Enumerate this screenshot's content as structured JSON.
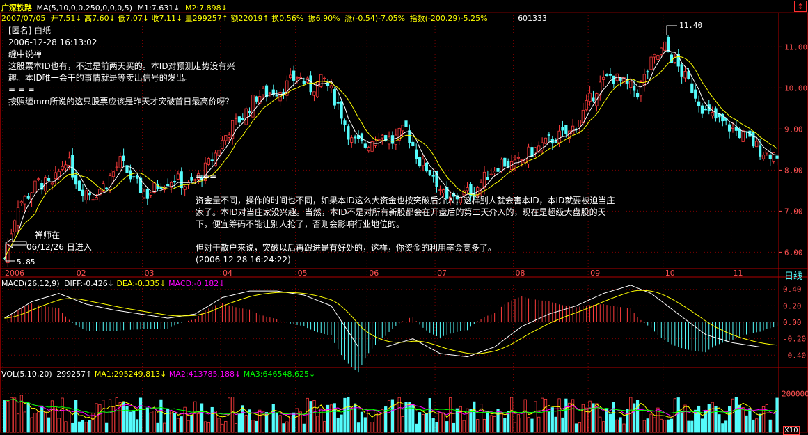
{
  "header": {
    "name": "广深铁路",
    "ma_formula": "MA(5,10,0,0,250,0,0,0,5)",
    "m1": "M1:7.631",
    "m2": "M2:7.898",
    "date": "2007/07/05",
    "open": "开7.51",
    "high": "高7.60",
    "low": "低7.07",
    "close": "收7.11",
    "volume": "量299257",
    "amount": "额22019",
    "turnover": "换0.56%",
    "amplitude": "振6.90%",
    "change": "涨(-0.54)-7.05%",
    "index": "指数(-200.29)-5.25%",
    "code": "601333"
  },
  "post": {
    "author": "[匿名] 白纸",
    "time": "2006-12-28 16:13:02",
    "lines": [
      "缠中说禅",
      "这股票本ID也有，不过是前两天买的。本ID对预测走势没有兴",
      "趣。本ID唯一会干的事情就是等卖出信号的发出。",
      "= = =",
      "按照缠mm所说的这只股票应该是昨天才突破首日最高价呀？"
    ]
  },
  "reply": {
    "marker": "===",
    "lines": [
      "资金量不同，操作的时间也不同，如果本ID这么大资金也按突破后介入，这样别人就会害本ID，本ID就要被迫当庄",
      "家了。本ID对当庄家没兴趣。当然，本ID不是对所有新股都会在开盘后的第二天介入的，现在是超级大盘股的天",
      "下，便宜筹码不能让别人抢了，否则会影响行业地位的。",
      "",
      "但对于散户来说，突破以后再跟进是有好处的，这样，你资金的利用率会高多了。",
      "(2006-12-28 16:24:22)"
    ]
  },
  "entry_note": {
    "line1": "禅师在",
    "line2": "06/12/26 日进入"
  },
  "restore_icon": "↕",
  "macd_header": {
    "label": "MACD(26,12,9)",
    "diff": "DIFF:-0.426",
    "dea": "DEA:-0.335",
    "macd": "MACD:-0.182"
  },
  "vol_header": {
    "label": "VOL(5,10,20)",
    "value": "299257",
    "ma1": "MA1:295249.813",
    "ma2": "MA2:413785.188",
    "ma3": "MA3:646548.625"
  },
  "period_label": "日线",
  "vol_unit": "X10",
  "colors": {
    "up": "#ff3c3c",
    "down": "#54fcfc",
    "ma5": "#ffffff",
    "ma10": "#ffff00",
    "ma3": "#00ff00",
    "ma2_line": "#ff00ff",
    "grid": "#7a0000",
    "axis_text": "#ff5050",
    "header_yellow": "#ffff00"
  },
  "chart_data": {
    "type": "candlestick",
    "x_months": [
      "2006",
      "02",
      "03",
      "04",
      "05",
      "06",
      "07",
      "08",
      "09",
      "10",
      "11"
    ],
    "price_ticks": [
      "11.00",
      "10.00",
      "9.00",
      "8.00",
      "7.00",
      "6.00"
    ],
    "price_ylim": [
      5.6,
      11.6
    ],
    "low_label": "5.85",
    "high_label": "11.40",
    "price_anchors": [
      [
        0,
        5.85
      ],
      [
        4,
        7.2
      ],
      [
        6,
        7.3
      ],
      [
        10,
        7.7
      ],
      [
        14,
        7.6
      ],
      [
        18,
        8.3
      ],
      [
        22,
        7.6
      ],
      [
        26,
        7.4
      ],
      [
        30,
        7.7
      ],
      [
        34,
        8.2
      ],
      [
        38,
        7.7
      ],
      [
        42,
        7.4
      ],
      [
        46,
        7.7
      ],
      [
        50,
        7.8
      ],
      [
        54,
        7.6
      ],
      [
        58,
        7.9
      ],
      [
        62,
        8.4
      ],
      [
        66,
        9.0
      ],
      [
        70,
        9.3
      ],
      [
        74,
        9.8
      ],
      [
        78,
        9.9
      ],
      [
        82,
        10.0
      ],
      [
        86,
        10.3
      ],
      [
        90,
        10.0
      ],
      [
        94,
        10.2
      ],
      [
        98,
        9.6
      ],
      [
        102,
        8.7
      ],
      [
        106,
        8.6
      ],
      [
        110,
        8.9
      ],
      [
        114,
        8.7
      ],
      [
        118,
        9.0
      ],
      [
        122,
        8.2
      ],
      [
        126,
        7.9
      ],
      [
        130,
        7.2
      ],
      [
        134,
        7.4
      ],
      [
        138,
        7.5
      ],
      [
        142,
        7.9
      ],
      [
        146,
        8.2
      ],
      [
        150,
        8.1
      ],
      [
        154,
        8.4
      ],
      [
        158,
        8.6
      ],
      [
        162,
        8.8
      ],
      [
        166,
        8.9
      ],
      [
        170,
        9.4
      ],
      [
        174,
        10.0
      ],
      [
        178,
        10.3
      ],
      [
        182,
        10.1
      ],
      [
        186,
        9.9
      ],
      [
        190,
        10.6
      ],
      [
        194,
        11.0
      ],
      [
        198,
        10.5
      ],
      [
        202,
        10.0
      ],
      [
        206,
        9.4
      ],
      [
        210,
        9.2
      ],
      [
        214,
        9.0
      ],
      [
        218,
        8.8
      ],
      [
        222,
        8.5
      ],
      [
        226,
        8.4
      ]
    ],
    "macd_ticks": [
      "0.40",
      "0.20",
      "0.00",
      "-0.20",
      "-0.40"
    ],
    "macd_ylim": [
      -0.55,
      0.55
    ],
    "diff_anchors": [
      [
        0,
        0.05
      ],
      [
        8,
        0.25
      ],
      [
        16,
        0.35
      ],
      [
        24,
        0.22
      ],
      [
        32,
        0.15
      ],
      [
        40,
        0.1
      ],
      [
        48,
        0.05
      ],
      [
        56,
        0.1
      ],
      [
        64,
        0.3
      ],
      [
        72,
        0.38
      ],
      [
        80,
        0.38
      ],
      [
        88,
        0.33
      ],
      [
        96,
        0.2
      ],
      [
        104,
        -0.3
      ],
      [
        112,
        -0.3
      ],
      [
        120,
        -0.2
      ],
      [
        128,
        -0.38
      ],
      [
        136,
        -0.42
      ],
      [
        144,
        -0.3
      ],
      [
        152,
        -0.05
      ],
      [
        160,
        0.1
      ],
      [
        168,
        0.2
      ],
      [
        176,
        0.35
      ],
      [
        184,
        0.45
      ],
      [
        190,
        0.35
      ],
      [
        198,
        0.1
      ],
      [
        206,
        -0.15
      ],
      [
        214,
        -0.25
      ],
      [
        222,
        -0.3
      ],
      [
        226,
        -0.3
      ]
    ],
    "vol_ticks": [
      "200000"
    ],
    "vol_max": 280000
  }
}
